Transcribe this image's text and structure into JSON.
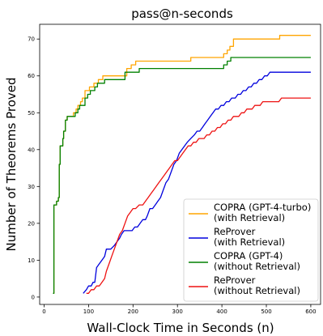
{
  "chart_data": {
    "type": "line",
    "title": "pass@n-seconds",
    "xlabel": "Wall-Clock Time in Seconds (n)",
    "ylabel": "Number of Theorems Proved",
    "xlim": [
      -10,
      622
    ],
    "ylim": [
      -2,
      74
    ],
    "xticks": [
      0,
      100,
      200,
      300,
      400,
      500,
      600
    ],
    "yticks": [
      0,
      10,
      20,
      30,
      40,
      50,
      60,
      70
    ],
    "grid": false,
    "legend": "bottom-right",
    "series": [
      {
        "name": "COPRA (GPT-4-turbo)\n(with Retrieval)",
        "color": "#ffa500",
        "step": true,
        "points": [
          [
            20,
            1
          ],
          [
            22,
            25
          ],
          [
            28,
            26
          ],
          [
            32,
            27
          ],
          [
            34,
            36
          ],
          [
            36,
            41
          ],
          [
            40,
            41
          ],
          [
            42,
            43
          ],
          [
            44,
            45
          ],
          [
            48,
            48
          ],
          [
            52,
            49
          ],
          [
            60,
            49
          ],
          [
            66,
            50
          ],
          [
            72,
            51
          ],
          [
            76,
            52
          ],
          [
            82,
            53
          ],
          [
            86,
            54
          ],
          [
            92,
            56
          ],
          [
            98,
            56
          ],
          [
            102,
            57
          ],
          [
            108,
            57
          ],
          [
            112,
            58
          ],
          [
            118,
            58
          ],
          [
            122,
            59
          ],
          [
            132,
            60
          ],
          [
            150,
            60
          ],
          [
            160,
            60
          ],
          [
            176,
            60
          ],
          [
            186,
            62
          ],
          [
            190,
            62
          ],
          [
            196,
            63
          ],
          [
            202,
            63
          ],
          [
            206,
            64
          ],
          [
            300,
            64
          ],
          [
            320,
            64
          ],
          [
            330,
            65
          ],
          [
            400,
            65
          ],
          [
            404,
            66
          ],
          [
            412,
            67
          ],
          [
            418,
            68
          ],
          [
            426,
            70
          ],
          [
            500,
            70
          ],
          [
            520,
            70
          ],
          [
            530,
            71
          ],
          [
            600,
            71
          ]
        ]
      },
      {
        "name": "ReProver\n(with Retrieval)",
        "color": "#0000dd",
        "points": [
          [
            88,
            1
          ],
          [
            95,
            2
          ],
          [
            100,
            3
          ],
          [
            106,
            3
          ],
          [
            110,
            4
          ],
          [
            114,
            4
          ],
          [
            118,
            8
          ],
          [
            124,
            9
          ],
          [
            130,
            10
          ],
          [
            136,
            11
          ],
          [
            140,
            13
          ],
          [
            150,
            13
          ],
          [
            158,
            14
          ],
          [
            164,
            15
          ],
          [
            170,
            16
          ],
          [
            174,
            17
          ],
          [
            180,
            18
          ],
          [
            186,
            18
          ],
          [
            192,
            18
          ],
          [
            198,
            18
          ],
          [
            204,
            19
          ],
          [
            210,
            19
          ],
          [
            216,
            20
          ],
          [
            222,
            21
          ],
          [
            228,
            21
          ],
          [
            232,
            22
          ],
          [
            238,
            24
          ],
          [
            244,
            24
          ],
          [
            250,
            25
          ],
          [
            256,
            26
          ],
          [
            262,
            27
          ],
          [
            268,
            29
          ],
          [
            274,
            31
          ],
          [
            280,
            32
          ],
          [
            286,
            34
          ],
          [
            292,
            36
          ],
          [
            298,
            37
          ],
          [
            304,
            39
          ],
          [
            310,
            40
          ],
          [
            316,
            41
          ],
          [
            322,
            42
          ],
          [
            330,
            43
          ],
          [
            338,
            44
          ],
          [
            344,
            45
          ],
          [
            350,
            45
          ],
          [
            356,
            46
          ],
          [
            362,
            47
          ],
          [
            368,
            48
          ],
          [
            374,
            49
          ],
          [
            380,
            50
          ],
          [
            386,
            51
          ],
          [
            392,
            51
          ],
          [
            398,
            52
          ],
          [
            404,
            52
          ],
          [
            410,
            53
          ],
          [
            416,
            53
          ],
          [
            422,
            54
          ],
          [
            430,
            54
          ],
          [
            436,
            55
          ],
          [
            442,
            55
          ],
          [
            448,
            56
          ],
          [
            454,
            56
          ],
          [
            460,
            57
          ],
          [
            466,
            57
          ],
          [
            472,
            58
          ],
          [
            478,
            58
          ],
          [
            484,
            59
          ],
          [
            490,
            59
          ],
          [
            496,
            60
          ],
          [
            502,
            60
          ],
          [
            508,
            61
          ],
          [
            540,
            61
          ],
          [
            560,
            61
          ],
          [
            580,
            61
          ],
          [
            600,
            61
          ]
        ]
      },
      {
        "name": "COPRA (GPT-4)\n(without Retrieval)",
        "color": "#008000",
        "step": true,
        "points": [
          [
            20,
            1
          ],
          [
            22,
            25
          ],
          [
            28,
            26
          ],
          [
            32,
            27
          ],
          [
            34,
            36
          ],
          [
            36,
            41
          ],
          [
            40,
            41
          ],
          [
            42,
            43
          ],
          [
            44,
            45
          ],
          [
            48,
            48
          ],
          [
            52,
            49
          ],
          [
            64,
            49
          ],
          [
            70,
            50
          ],
          [
            76,
            51
          ],
          [
            80,
            52
          ],
          [
            86,
            52
          ],
          [
            92,
            54
          ],
          [
            98,
            55
          ],
          [
            104,
            56
          ],
          [
            110,
            56
          ],
          [
            114,
            57
          ],
          [
            120,
            58
          ],
          [
            130,
            58
          ],
          [
            136,
            59
          ],
          [
            170,
            59
          ],
          [
            182,
            61
          ],
          [
            214,
            62
          ],
          [
            300,
            62
          ],
          [
            320,
            62
          ],
          [
            400,
            62
          ],
          [
            404,
            63
          ],
          [
            412,
            64
          ],
          [
            420,
            65
          ],
          [
            500,
            65
          ],
          [
            600,
            65
          ]
        ]
      },
      {
        "name": "ReProver\n(without Retrieval)",
        "color": "#ee1111",
        "points": [
          [
            95,
            1
          ],
          [
            100,
            1
          ],
          [
            106,
            2
          ],
          [
            112,
            2
          ],
          [
            118,
            3
          ],
          [
            124,
            3
          ],
          [
            130,
            4
          ],
          [
            136,
            5
          ],
          [
            140,
            7
          ],
          [
            146,
            9
          ],
          [
            152,
            11
          ],
          [
            158,
            13
          ],
          [
            164,
            15
          ],
          [
            170,
            17
          ],
          [
            176,
            18
          ],
          [
            182,
            20
          ],
          [
            188,
            22
          ],
          [
            194,
            23
          ],
          [
            200,
            24
          ],
          [
            206,
            24
          ],
          [
            214,
            25
          ],
          [
            222,
            25
          ],
          [
            228,
            26
          ],
          [
            234,
            27
          ],
          [
            240,
            28
          ],
          [
            246,
            29
          ],
          [
            252,
            30
          ],
          [
            258,
            31
          ],
          [
            264,
            32
          ],
          [
            270,
            33
          ],
          [
            276,
            34
          ],
          [
            282,
            35
          ],
          [
            288,
            36
          ],
          [
            294,
            37
          ],
          [
            300,
            37
          ],
          [
            306,
            38
          ],
          [
            312,
            39
          ],
          [
            318,
            40
          ],
          [
            324,
            41
          ],
          [
            330,
            41
          ],
          [
            336,
            42
          ],
          [
            342,
            42
          ],
          [
            348,
            43
          ],
          [
            354,
            43
          ],
          [
            360,
            43
          ],
          [
            366,
            44
          ],
          [
            372,
            44
          ],
          [
            378,
            45
          ],
          [
            384,
            45
          ],
          [
            390,
            46
          ],
          [
            396,
            46
          ],
          [
            402,
            47
          ],
          [
            408,
            47
          ],
          [
            414,
            48
          ],
          [
            420,
            48
          ],
          [
            426,
            49
          ],
          [
            432,
            49
          ],
          [
            438,
            49
          ],
          [
            444,
            50
          ],
          [
            450,
            50
          ],
          [
            456,
            51
          ],
          [
            462,
            51
          ],
          [
            468,
            51
          ],
          [
            474,
            52
          ],
          [
            480,
            52
          ],
          [
            486,
            52
          ],
          [
            492,
            53
          ],
          [
            498,
            53
          ],
          [
            504,
            53
          ],
          [
            510,
            53
          ],
          [
            516,
            53
          ],
          [
            522,
            53
          ],
          [
            528,
            53
          ],
          [
            534,
            54
          ],
          [
            540,
            54
          ],
          [
            560,
            54
          ],
          [
            580,
            54
          ],
          [
            600,
            54
          ]
        ]
      }
    ]
  }
}
